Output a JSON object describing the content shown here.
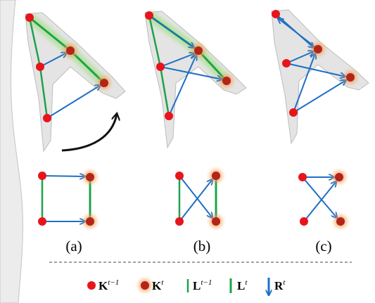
{
  "panels": [
    {
      "label": "(a)"
    },
    {
      "label": "(b)"
    },
    {
      "label": "(c)"
    }
  ],
  "legend": [
    {
      "symbol": "K",
      "superscript": "t−1"
    },
    {
      "symbol": "K",
      "superscript": "t"
    },
    {
      "symbol": "L",
      "superscript": "t−1"
    },
    {
      "symbol": "L",
      "superscript": "t"
    },
    {
      "symbol": "R",
      "superscript": "t"
    }
  ]
}
